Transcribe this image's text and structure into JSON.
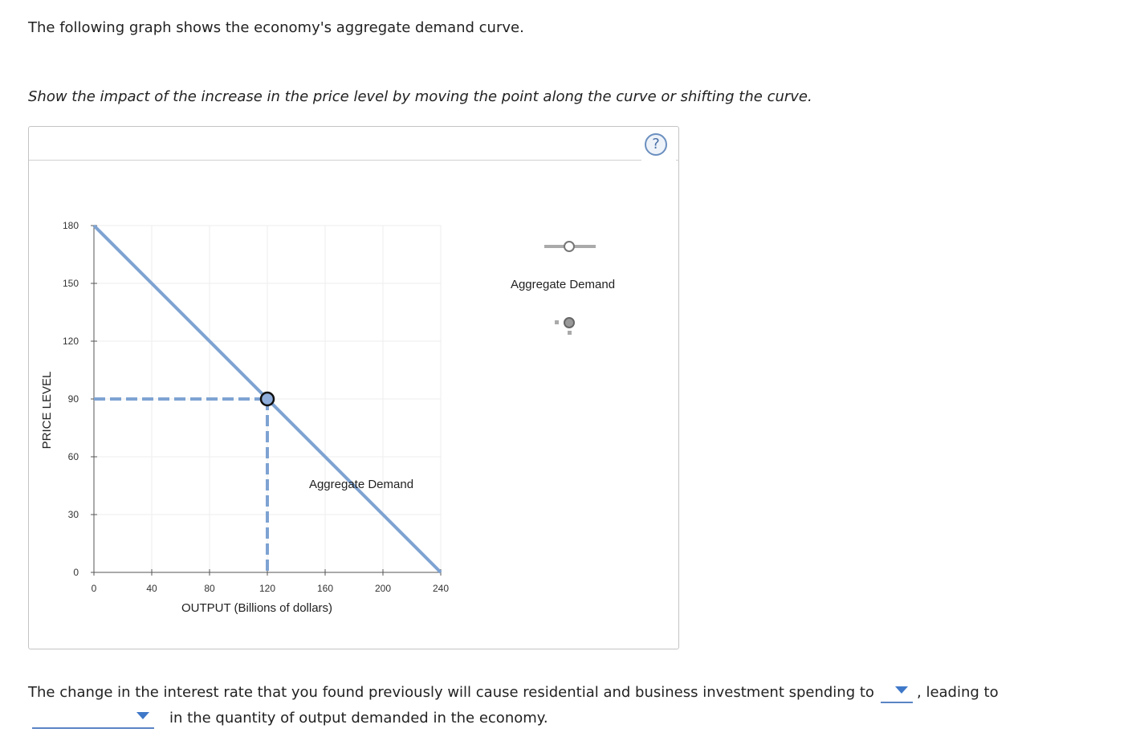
{
  "intro_text": "The following graph shows the economy's aggregate demand curve.",
  "instruction_text": "Show the impact of the increase in the price level by moving the point along the curve or shifting the curve.",
  "help_symbol": "?",
  "chart_data": {
    "type": "line",
    "xlabel": "OUTPUT (Billions of dollars)",
    "ylabel": "PRICE LEVEL",
    "xlim": [
      0,
      240
    ],
    "ylim": [
      0,
      180
    ],
    "x_ticks": [
      "0",
      "40",
      "80",
      "120",
      "160",
      "200",
      "240"
    ],
    "y_ticks": [
      "0",
      "30",
      "60",
      "90",
      "120",
      "150",
      "180"
    ],
    "grid": true,
    "series": [
      {
        "name": "Aggregate Demand",
        "points": [
          [
            0,
            180
          ],
          [
            240,
            0
          ]
        ],
        "color": "#7ea3d2"
      }
    ],
    "curve_label": "Aggregate Demand",
    "highlighted_point": {
      "x": 120,
      "y": 90
    },
    "dashed_guides": true,
    "palette": [
      {
        "label": "Aggregate Demand",
        "icon": "line-with-hollow-point-icon"
      },
      {
        "icon": "point-marker-icon"
      }
    ]
  },
  "sentence": {
    "part1": "The change in the interest rate that you found previously will cause residential and business investment spending to",
    "part2": ", leading to",
    "part3": "in the quantity of output demanded in the economy.",
    "dropdown1_value": "",
    "dropdown2_value": ""
  },
  "colors": {
    "curve": "#7ea3d2",
    "dropdown_accent": "#3f78c8",
    "help": "#4a6fa5"
  }
}
